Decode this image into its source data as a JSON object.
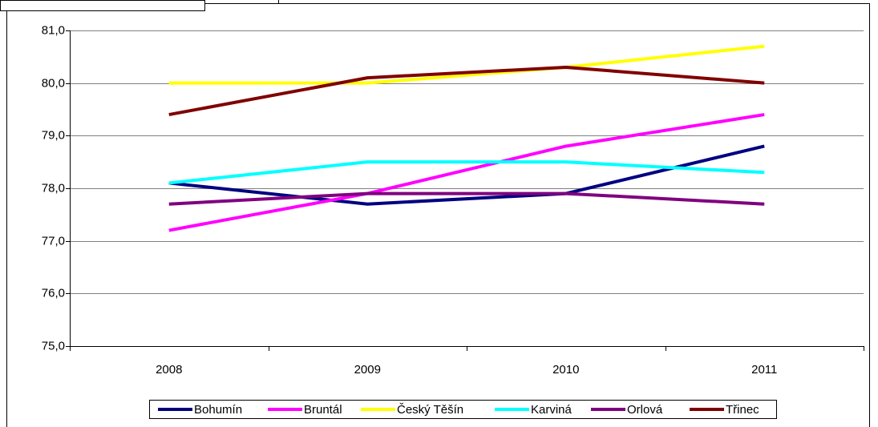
{
  "chart_data": {
    "type": "line",
    "categories": [
      "2008",
      "2009",
      "2010",
      "2011"
    ],
    "series": [
      {
        "name": "Bohumín",
        "color": "#000080",
        "values": [
          78.1,
          77.7,
          77.9,
          78.8
        ]
      },
      {
        "name": "Bruntál",
        "color": "#ff00ff",
        "values": [
          77.2,
          77.9,
          78.8,
          79.4
        ]
      },
      {
        "name": "Český Těšín",
        "color": "#ffff00",
        "values": [
          80.0,
          80.0,
          80.3,
          80.7
        ]
      },
      {
        "name": "Karviná",
        "color": "#00ffff",
        "values": [
          78.1,
          78.5,
          78.5,
          78.3
        ]
      },
      {
        "name": "Orlová",
        "color": "#800080",
        "values": [
          77.7,
          77.9,
          77.9,
          77.7
        ]
      },
      {
        "name": "Třinec",
        "color": "#800000",
        "values": [
          79.4,
          80.1,
          80.3,
          80.0
        ]
      }
    ],
    "ylim": [
      75,
      81
    ],
    "yticks": [
      {
        "value": 75,
        "label": "75,0"
      },
      {
        "value": 76,
        "label": "76,0"
      },
      {
        "value": 77,
        "label": "77,0"
      },
      {
        "value": 78,
        "label": "78,0"
      },
      {
        "value": 79,
        "label": "79,0"
      },
      {
        "value": 80,
        "label": "80,0"
      },
      {
        "value": 81,
        "label": "81,0"
      }
    ],
    "grid": true,
    "legend": "bottom"
  }
}
